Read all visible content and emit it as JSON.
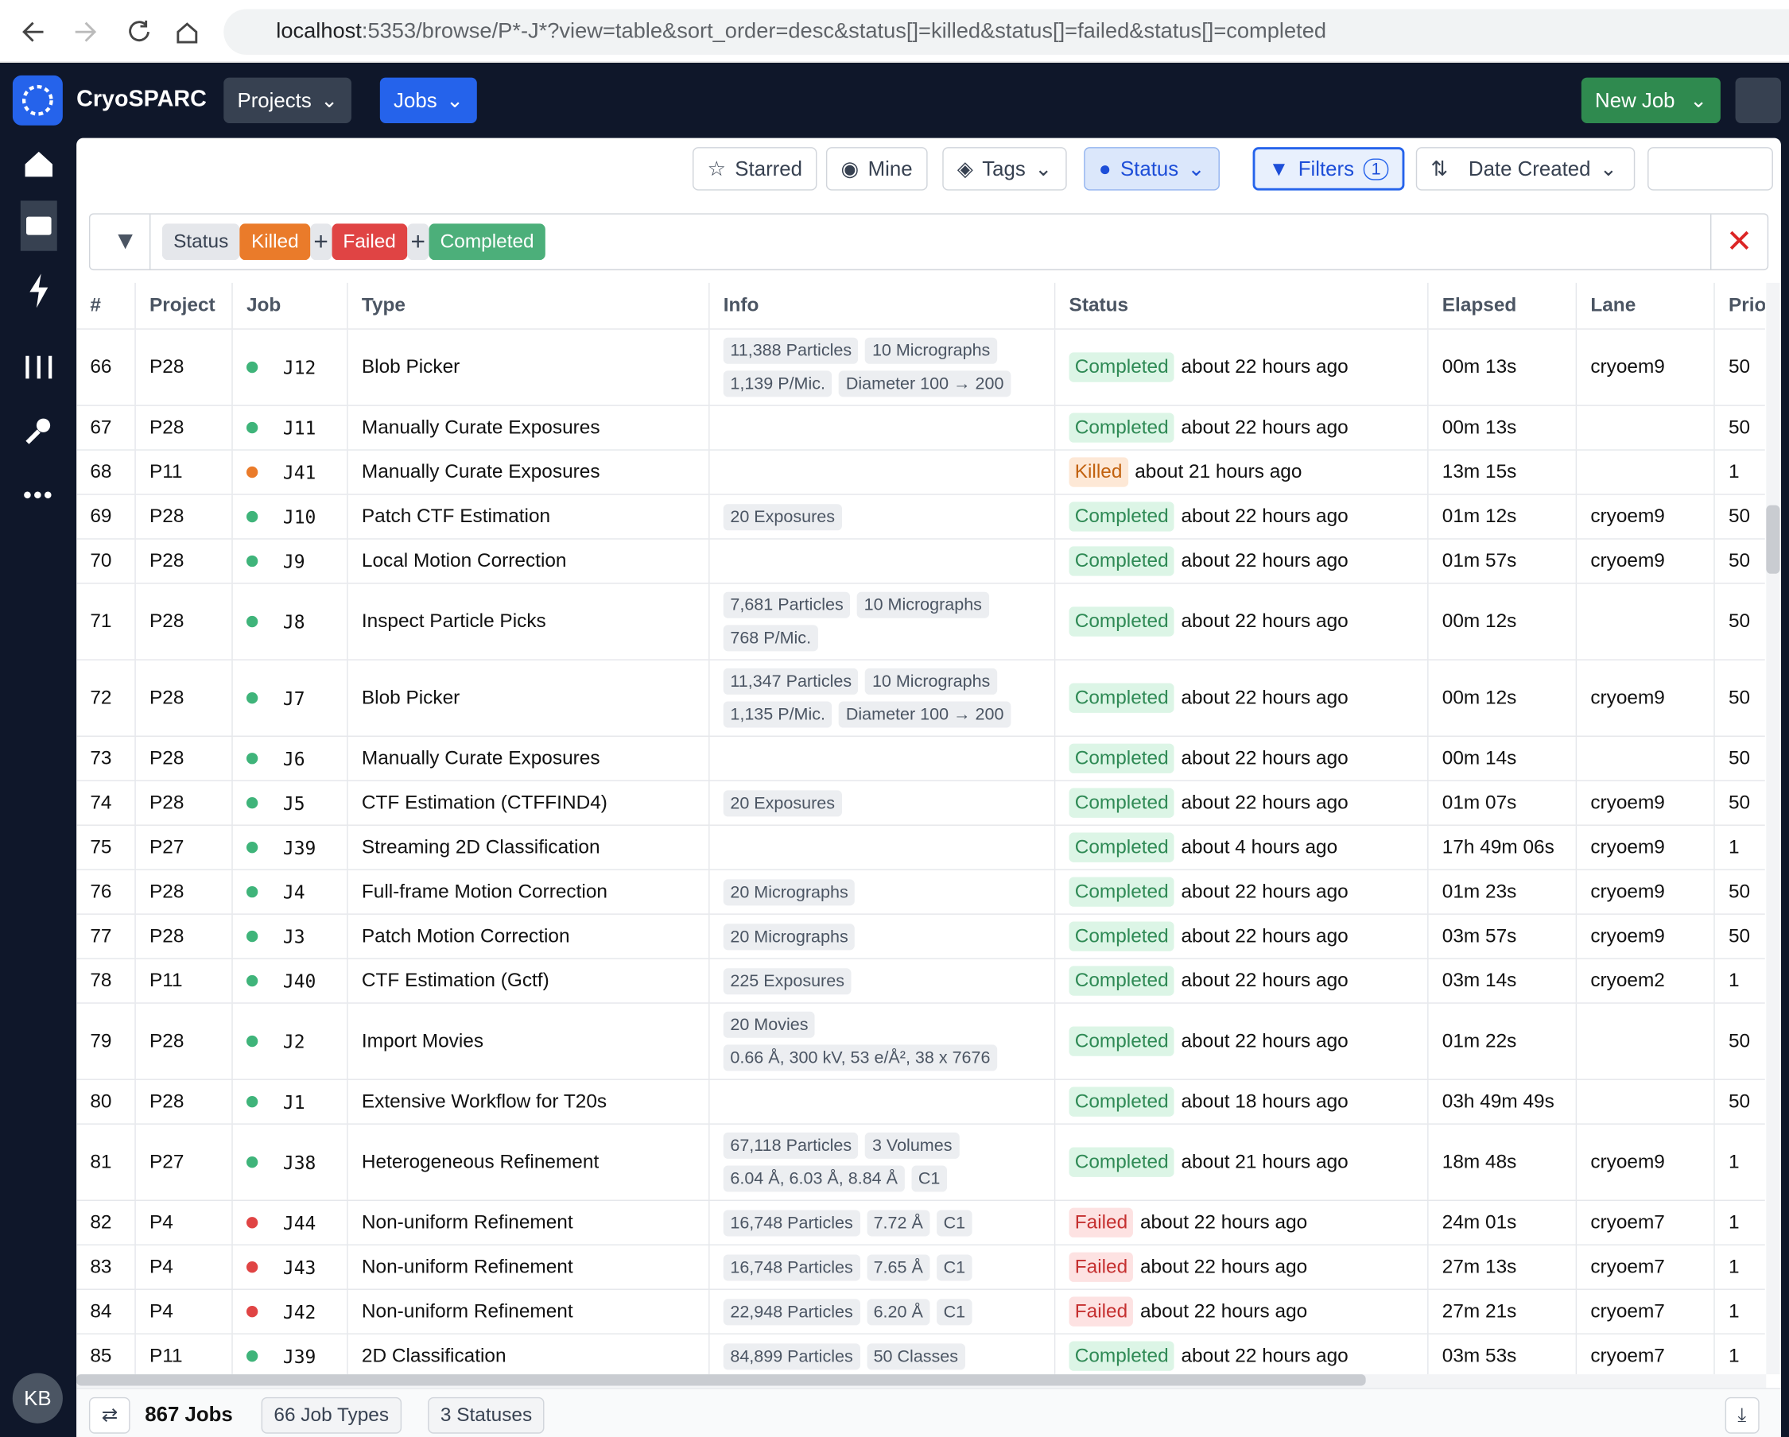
{
  "browser": {
    "url_host": "localhost",
    "url_rest": ":5353/browse/P*-J*?view=table&sort_order=desc&status[]=killed&status[]=failed&status[]=completed"
  },
  "nav": {
    "brand": "CryoSPARC",
    "projects": "Projects",
    "jobs": "Jobs",
    "new_job": "New Job"
  },
  "toolbar": {
    "starred": "Starred",
    "mine": "Mine",
    "tags": "Tags",
    "status": "Status",
    "filters": "Filters",
    "filter_count": "1",
    "sort": "Date Created"
  },
  "filter": {
    "label": "Status",
    "chips": [
      "Killed",
      "Failed",
      "Completed"
    ]
  },
  "user": {
    "initials": "KB"
  },
  "table": {
    "columns": [
      "#",
      "Project",
      "Job",
      "Type",
      "Info",
      "Status",
      "Elapsed",
      "Lane",
      "Priority"
    ],
    "rows": [
      {
        "n": 66,
        "project": "P28",
        "job": "J12",
        "type": "Blob Picker",
        "info": [
          "11,388 Particles",
          "10 Micrographs",
          "1,139 P/Mic.",
          "Diameter 100 → 200"
        ],
        "status": "Completed",
        "time": "about 22 hours ago",
        "elapsed": "00m 13s",
        "lane": "cryoem9",
        "priority": 50
      },
      {
        "n": 67,
        "project": "P28",
        "job": "J11",
        "type": "Manually Curate Exposures",
        "status": "Completed",
        "time": "about 22 hours ago",
        "elapsed": "00m 13s",
        "priority": 50
      },
      {
        "n": 68,
        "project": "P11",
        "job": "J41",
        "type": "Manually Curate Exposures",
        "status": "Killed",
        "time": "about 21 hours ago",
        "elapsed": "13m 15s",
        "priority": 1
      },
      {
        "n": 69,
        "project": "P28",
        "job": "J10",
        "type": "Patch CTF Estimation",
        "info": [
          "20 Exposures"
        ],
        "status": "Completed",
        "time": "about 22 hours ago",
        "elapsed": "01m 12s",
        "lane": "cryoem9",
        "priority": 50
      },
      {
        "n": 70,
        "project": "P28",
        "job": "J9",
        "type": "Local Motion Correction",
        "status": "Completed",
        "time": "about 22 hours ago",
        "elapsed": "01m 57s",
        "lane": "cryoem9",
        "priority": 50
      },
      {
        "n": 71,
        "project": "P28",
        "job": "J8",
        "type": "Inspect Particle Picks",
        "info": [
          "7,681 Particles",
          "10 Micrographs",
          "768 P/Mic."
        ],
        "status": "Completed",
        "time": "about 22 hours ago",
        "elapsed": "00m 12s",
        "priority": 50
      },
      {
        "n": 72,
        "project": "P28",
        "job": "J7",
        "type": "Blob Picker",
        "info": [
          "11,347 Particles",
          "10 Micrographs",
          "1,135 P/Mic.",
          "Diameter 100 → 200"
        ],
        "status": "Completed",
        "time": "about 22 hours ago",
        "elapsed": "00m 12s",
        "lane": "cryoem9",
        "priority": 50
      },
      {
        "n": 73,
        "project": "P28",
        "job": "J6",
        "type": "Manually Curate Exposures",
        "status": "Completed",
        "time": "about 22 hours ago",
        "elapsed": "00m 14s",
        "priority": 50
      },
      {
        "n": 74,
        "project": "P28",
        "job": "J5",
        "type": "CTF Estimation (CTFFIND4)",
        "info": [
          "20 Exposures"
        ],
        "status": "Completed",
        "time": "about 22 hours ago",
        "elapsed": "01m 07s",
        "lane": "cryoem9",
        "priority": 50
      },
      {
        "n": 75,
        "project": "P27",
        "job": "J39",
        "type": "Streaming 2D Classification",
        "status": "Completed",
        "time": "about 4 hours ago",
        "elapsed": "17h 49m 06s",
        "lane": "cryoem9",
        "priority": 1
      },
      {
        "n": 76,
        "project": "P28",
        "job": "J4",
        "type": "Full-frame Motion Correction",
        "info": [
          "20 Micrographs"
        ],
        "status": "Completed",
        "time": "about 22 hours ago",
        "elapsed": "01m 23s",
        "lane": "cryoem9",
        "priority": 50
      },
      {
        "n": 77,
        "project": "P28",
        "job": "J3",
        "type": "Patch Motion Correction",
        "info": [
          "20 Micrographs"
        ],
        "status": "Completed",
        "time": "about 22 hours ago",
        "elapsed": "03m 57s",
        "lane": "cryoem9",
        "priority": 50
      },
      {
        "n": 78,
        "project": "P11",
        "job": "J40",
        "type": "CTF Estimation (Gctf)",
        "info": [
          "225 Exposures"
        ],
        "status": "Completed",
        "time": "about 22 hours ago",
        "elapsed": "03m 14s",
        "lane": "cryoem2",
        "priority": 1
      },
      {
        "n": 79,
        "project": "P28",
        "job": "J2",
        "type": "Import Movies",
        "info": [
          "20 Movies",
          "0.66 Å, 300 kV, 53 e/Å², 38 x 7676"
        ],
        "status": "Completed",
        "time": "about 22 hours ago",
        "elapsed": "01m 22s",
        "priority": 50
      },
      {
        "n": 80,
        "project": "P28",
        "job": "J1",
        "type": "Extensive Workflow for T20s",
        "status": "Completed",
        "time": "about 18 hours ago",
        "elapsed": "03h 49m 49s",
        "priority": 50
      },
      {
        "n": 81,
        "project": "P27",
        "job": "J38",
        "type": "Heterogeneous Refinement",
        "info": [
          "67,118 Particles",
          "3 Volumes",
          "6.04 Å, 6.03 Å, 8.84 Å",
          "C1"
        ],
        "status": "Completed",
        "time": "about 21 hours ago",
        "elapsed": "18m 48s",
        "lane": "cryoem9",
        "priority": 1
      },
      {
        "n": 82,
        "project": "P4",
        "job": "J44",
        "type": "Non-uniform Refinement",
        "info": [
          "16,748 Particles",
          "7.72 Å",
          "C1"
        ],
        "status": "Failed",
        "time": "about 22 hours ago",
        "elapsed": "24m 01s",
        "lane": "cryoem7",
        "priority": 1
      },
      {
        "n": 83,
        "project": "P4",
        "job": "J43",
        "type": "Non-uniform Refinement",
        "info": [
          "16,748 Particles",
          "7.65 Å",
          "C1"
        ],
        "status": "Failed",
        "time": "about 22 hours ago",
        "elapsed": "27m 13s",
        "lane": "cryoem7",
        "priority": 1
      },
      {
        "n": 84,
        "project": "P4",
        "job": "J42",
        "type": "Non-uniform Refinement",
        "info": [
          "22,948 Particles",
          "6.20 Å",
          "C1"
        ],
        "status": "Failed",
        "time": "about 22 hours ago",
        "elapsed": "27m 21s",
        "lane": "cryoem7",
        "priority": 1
      },
      {
        "n": 85,
        "project": "P11",
        "job": "J39",
        "type": "2D Classification",
        "info": [
          "84,899 Particles",
          "50 Classes"
        ],
        "status": "Completed",
        "time": "about 22 hours ago",
        "elapsed": "03m 53s",
        "lane": "cryoem7",
        "priority": 1
      }
    ]
  },
  "footer": {
    "jobs": "867 Jobs",
    "job_types": "66 Job Types",
    "statuses": "3 Statuses"
  }
}
